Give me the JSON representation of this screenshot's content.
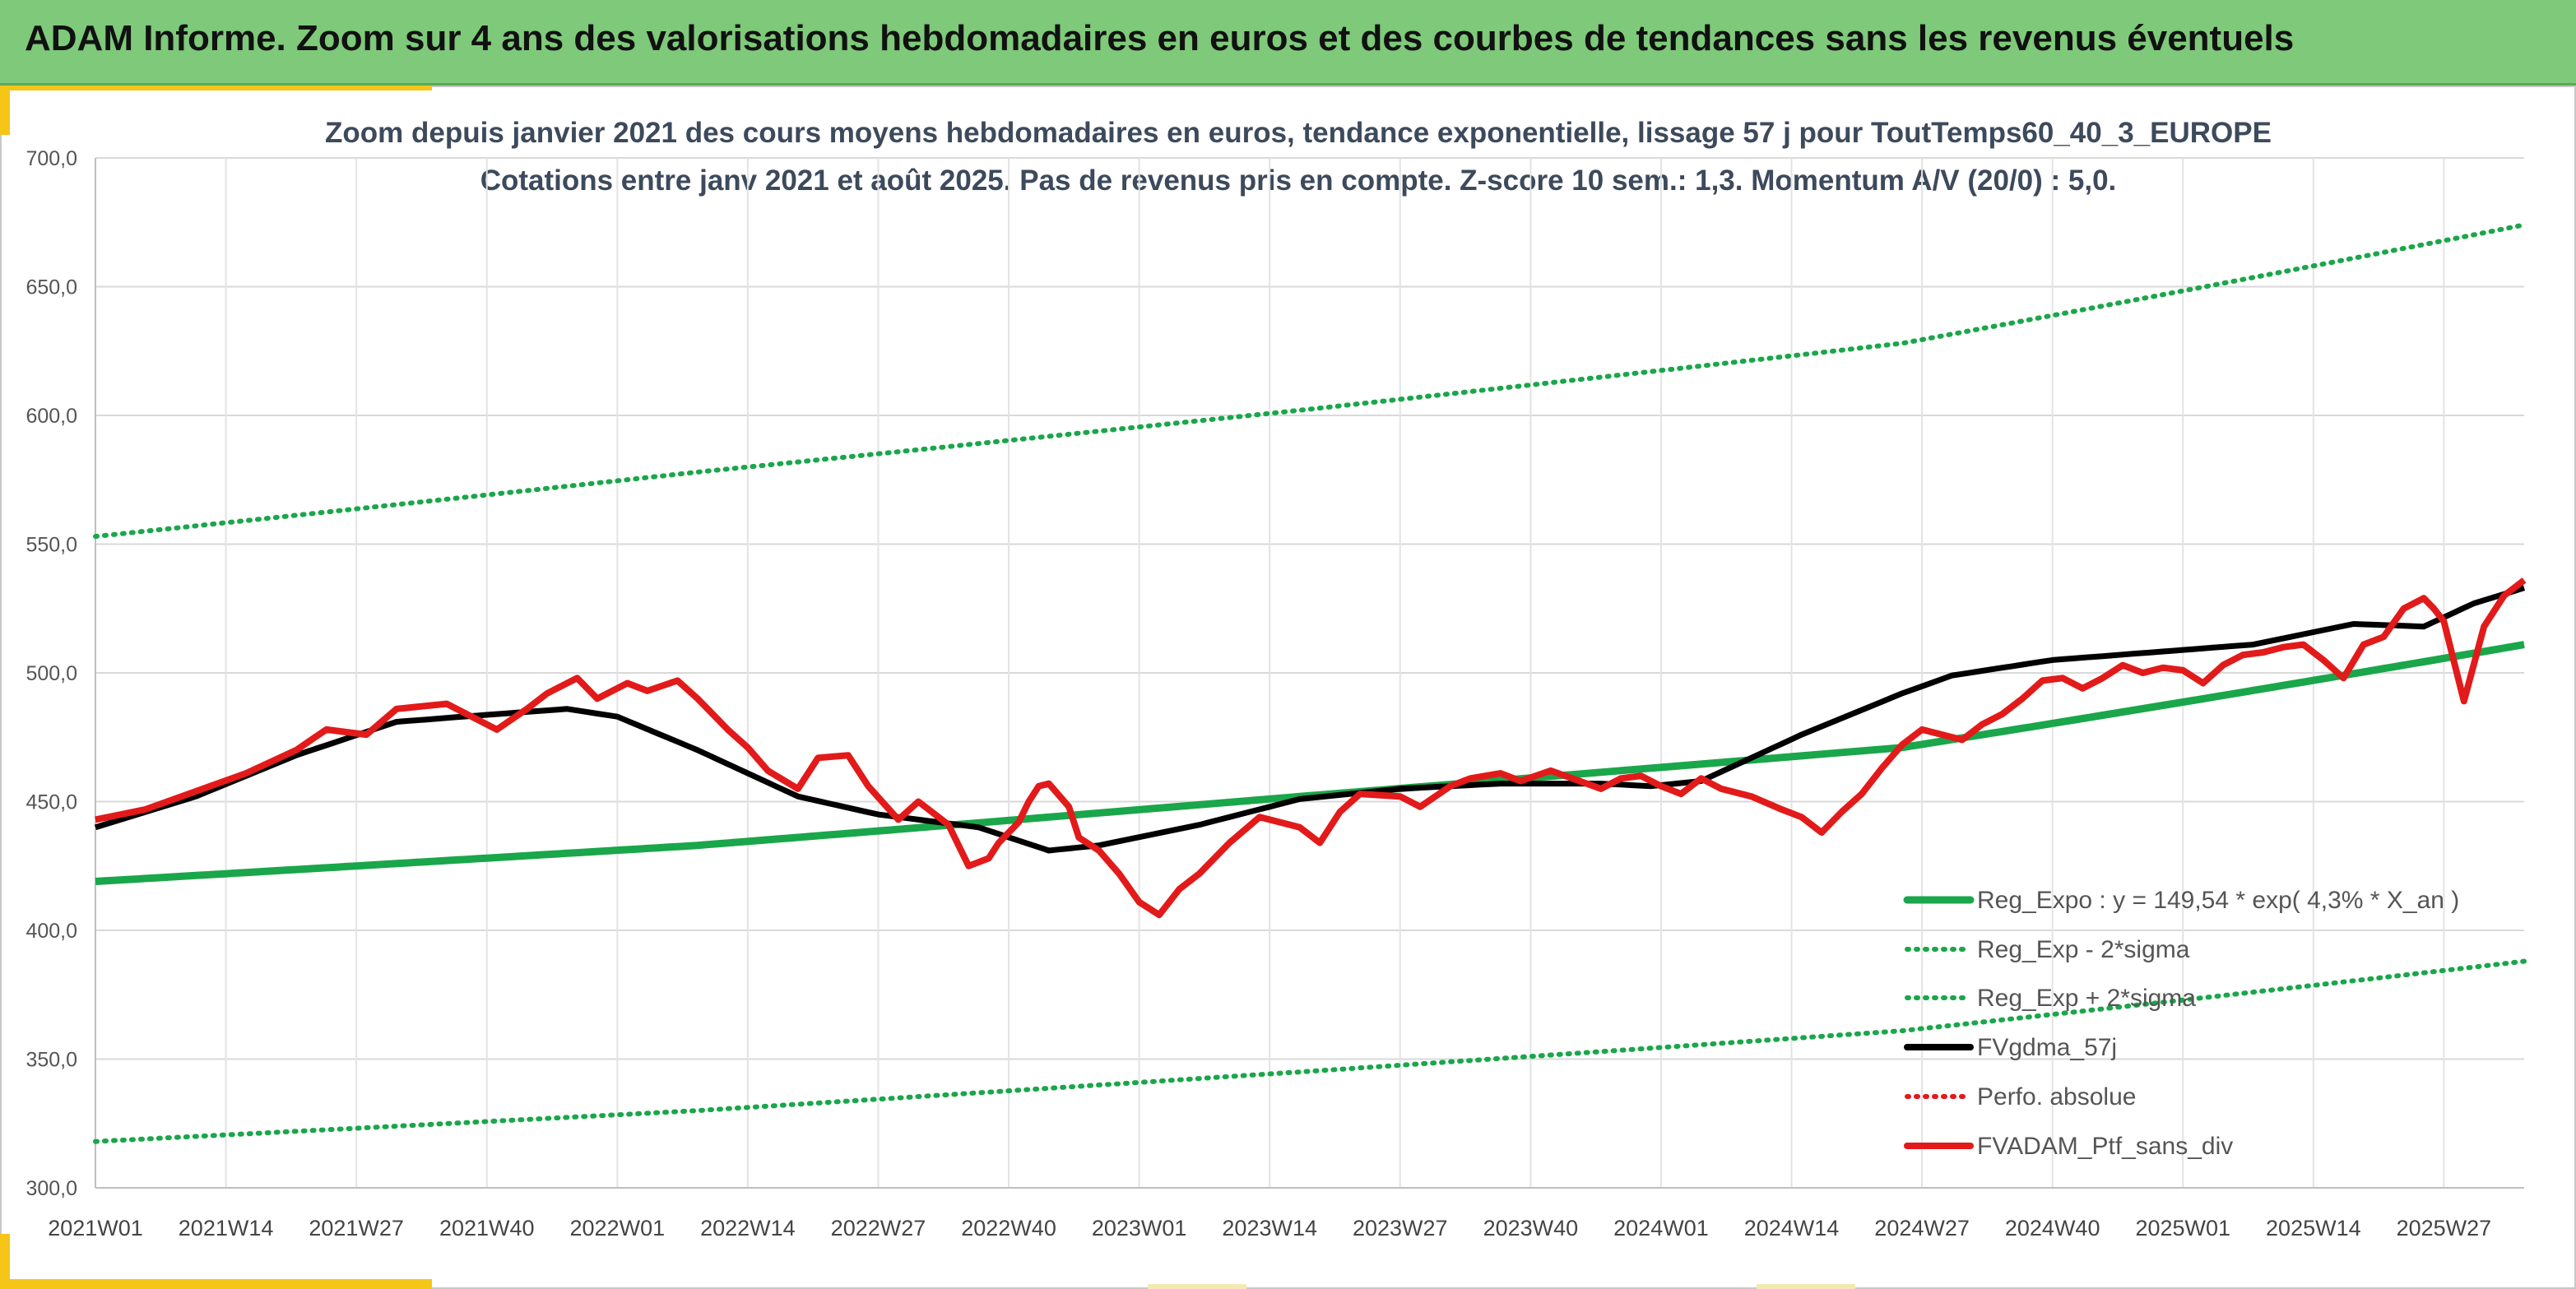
{
  "header": {
    "title": "ADAM Informe. Zoom sur 4 ans des valorisations hebdomadaires en euros et des courbes de tendances sans les revenus éventuels"
  },
  "colors": {
    "banner": "#7fc97a",
    "accent": "#f5c518",
    "reg_expo": "#1aa64a",
    "sigma": "#1aa64a",
    "gdma": "#000000",
    "perfo": "#e21a1a",
    "portfolio": "#e21a1a"
  },
  "chart_data": {
    "type": "line",
    "title_line1": "Zoom depuis janvier 2021 des cours moyens hebdomadaires en euros, tendance exponentielle, lissage 57 j pour ToutTemps60_40_3_EUROPE",
    "title_line2": "Cotations entre janv 2021 et août 2025. Pas de revenus pris en compte. Z-score 10 sem.: 1,3. Momentum A/V (20/0) : 5,0.",
    "ylim": [
      300,
      700
    ],
    "yticks": [
      "700,0",
      "650,0",
      "600,0",
      "550,0",
      "500,0",
      "450,0",
      "400,0",
      "350,0",
      "300,0"
    ],
    "ytick_values": [
      700,
      650,
      600,
      550,
      500,
      450,
      400,
      350,
      300
    ],
    "xticks": [
      "2021W01",
      "2021W14",
      "2021W27",
      "2021W40",
      "2022W01",
      "2022W14",
      "2022W27",
      "2022W40",
      "2023W01",
      "2023W14",
      "2023W27",
      "2023W40",
      "2024W01",
      "2024W14",
      "2024W27",
      "2024W40",
      "2025W01",
      "2025W14",
      "2025W27"
    ],
    "grid": true,
    "legend_position": "bottom-right",
    "n_weeks": 243,
    "series": [
      {
        "name": "Reg_Expo : y = 149,54 * exp( 4,3% *  X_an )",
        "style": "solid-thick",
        "x": [
          0,
          60,
          120,
          180,
          242
        ],
        "values": [
          419,
          433,
          452,
          471,
          511
        ]
      },
      {
        "name": "Reg_Exp - 2*sigma",
        "style": "dotted",
        "x": [
          0,
          60,
          120,
          180,
          242
        ],
        "values": [
          318,
          330,
          345,
          361,
          388
        ]
      },
      {
        "name": "Reg_Exp + 2*sigma",
        "style": "dotted",
        "x": [
          0,
          60,
          120,
          180,
          242
        ],
        "values": [
          553,
          578,
          602,
          628,
          674
        ]
      },
      {
        "name": "FVgdma_57j",
        "style": "solid-thick",
        "x": [
          0,
          10,
          20,
          30,
          40,
          47,
          52,
          60,
          70,
          78,
          88,
          95,
          100,
          110,
          120,
          130,
          140,
          150,
          155,
          160,
          170,
          180,
          185,
          195,
          205,
          215,
          225,
          232,
          237,
          242
        ],
        "values": [
          440,
          452,
          468,
          481,
          484,
          486,
          483,
          470,
          452,
          445,
          440,
          431,
          433,
          441,
          451,
          455,
          457,
          457,
          456,
          458,
          476,
          492,
          499,
          505,
          508,
          511,
          519,
          518,
          527,
          533
        ]
      },
      {
        "name": "Perfo. absolue",
        "style": "dotted-red",
        "x": [],
        "values": []
      },
      {
        "name": "FVADAM_Ptf_sans_div",
        "style": "solid-thick",
        "x": [
          0,
          5,
          10,
          15,
          20,
          23,
          27,
          30,
          35,
          40,
          43,
          45,
          48,
          50,
          53,
          55,
          58,
          60,
          62,
          63,
          65,
          67,
          70,
          72,
          75,
          77,
          80,
          82,
          85,
          87,
          89,
          90,
          92,
          93,
          94,
          95,
          97,
          98,
          100,
          102,
          104,
          106,
          108,
          110,
          113,
          116,
          120,
          122,
          124,
          126,
          130,
          132,
          135,
          137,
          140,
          142,
          145,
          150,
          152,
          154,
          156,
          158,
          160,
          162,
          165,
          168,
          170,
          172,
          174,
          176,
          178,
          180,
          182,
          184,
          186,
          188,
          190,
          192,
          194,
          196,
          198,
          200,
          202,
          204,
          206,
          208,
          210,
          212,
          214,
          216,
          218,
          220,
          222,
          224,
          226,
          228,
          230,
          232,
          233,
          234,
          236,
          238,
          240,
          242
        ],
        "values": [
          443,
          447,
          454,
          461,
          470,
          478,
          476,
          486,
          488,
          478,
          486,
          492,
          498,
          490,
          496,
          493,
          497,
          490,
          482,
          478,
          471,
          462,
          455,
          467,
          468,
          456,
          443,
          450,
          441,
          425,
          428,
          434,
          442,
          450,
          456,
          457,
          448,
          436,
          431,
          422,
          411,
          406,
          416,
          422,
          434,
          444,
          440,
          434,
          446,
          453,
          452,
          448,
          456,
          459,
          461,
          458,
          462,
          455,
          459,
          460,
          456,
          453,
          459,
          455,
          452,
          447,
          444,
          438,
          446,
          453,
          463,
          472,
          478,
          476,
          474,
          480,
          484,
          490,
          497,
          498,
          494,
          498,
          503,
          500,
          502,
          501,
          496,
          503,
          507,
          508,
          510,
          511,
          505,
          498,
          511,
          514,
          525,
          529,
          525,
          520,
          489,
          518,
          530,
          536
        ]
      }
    ]
  }
}
